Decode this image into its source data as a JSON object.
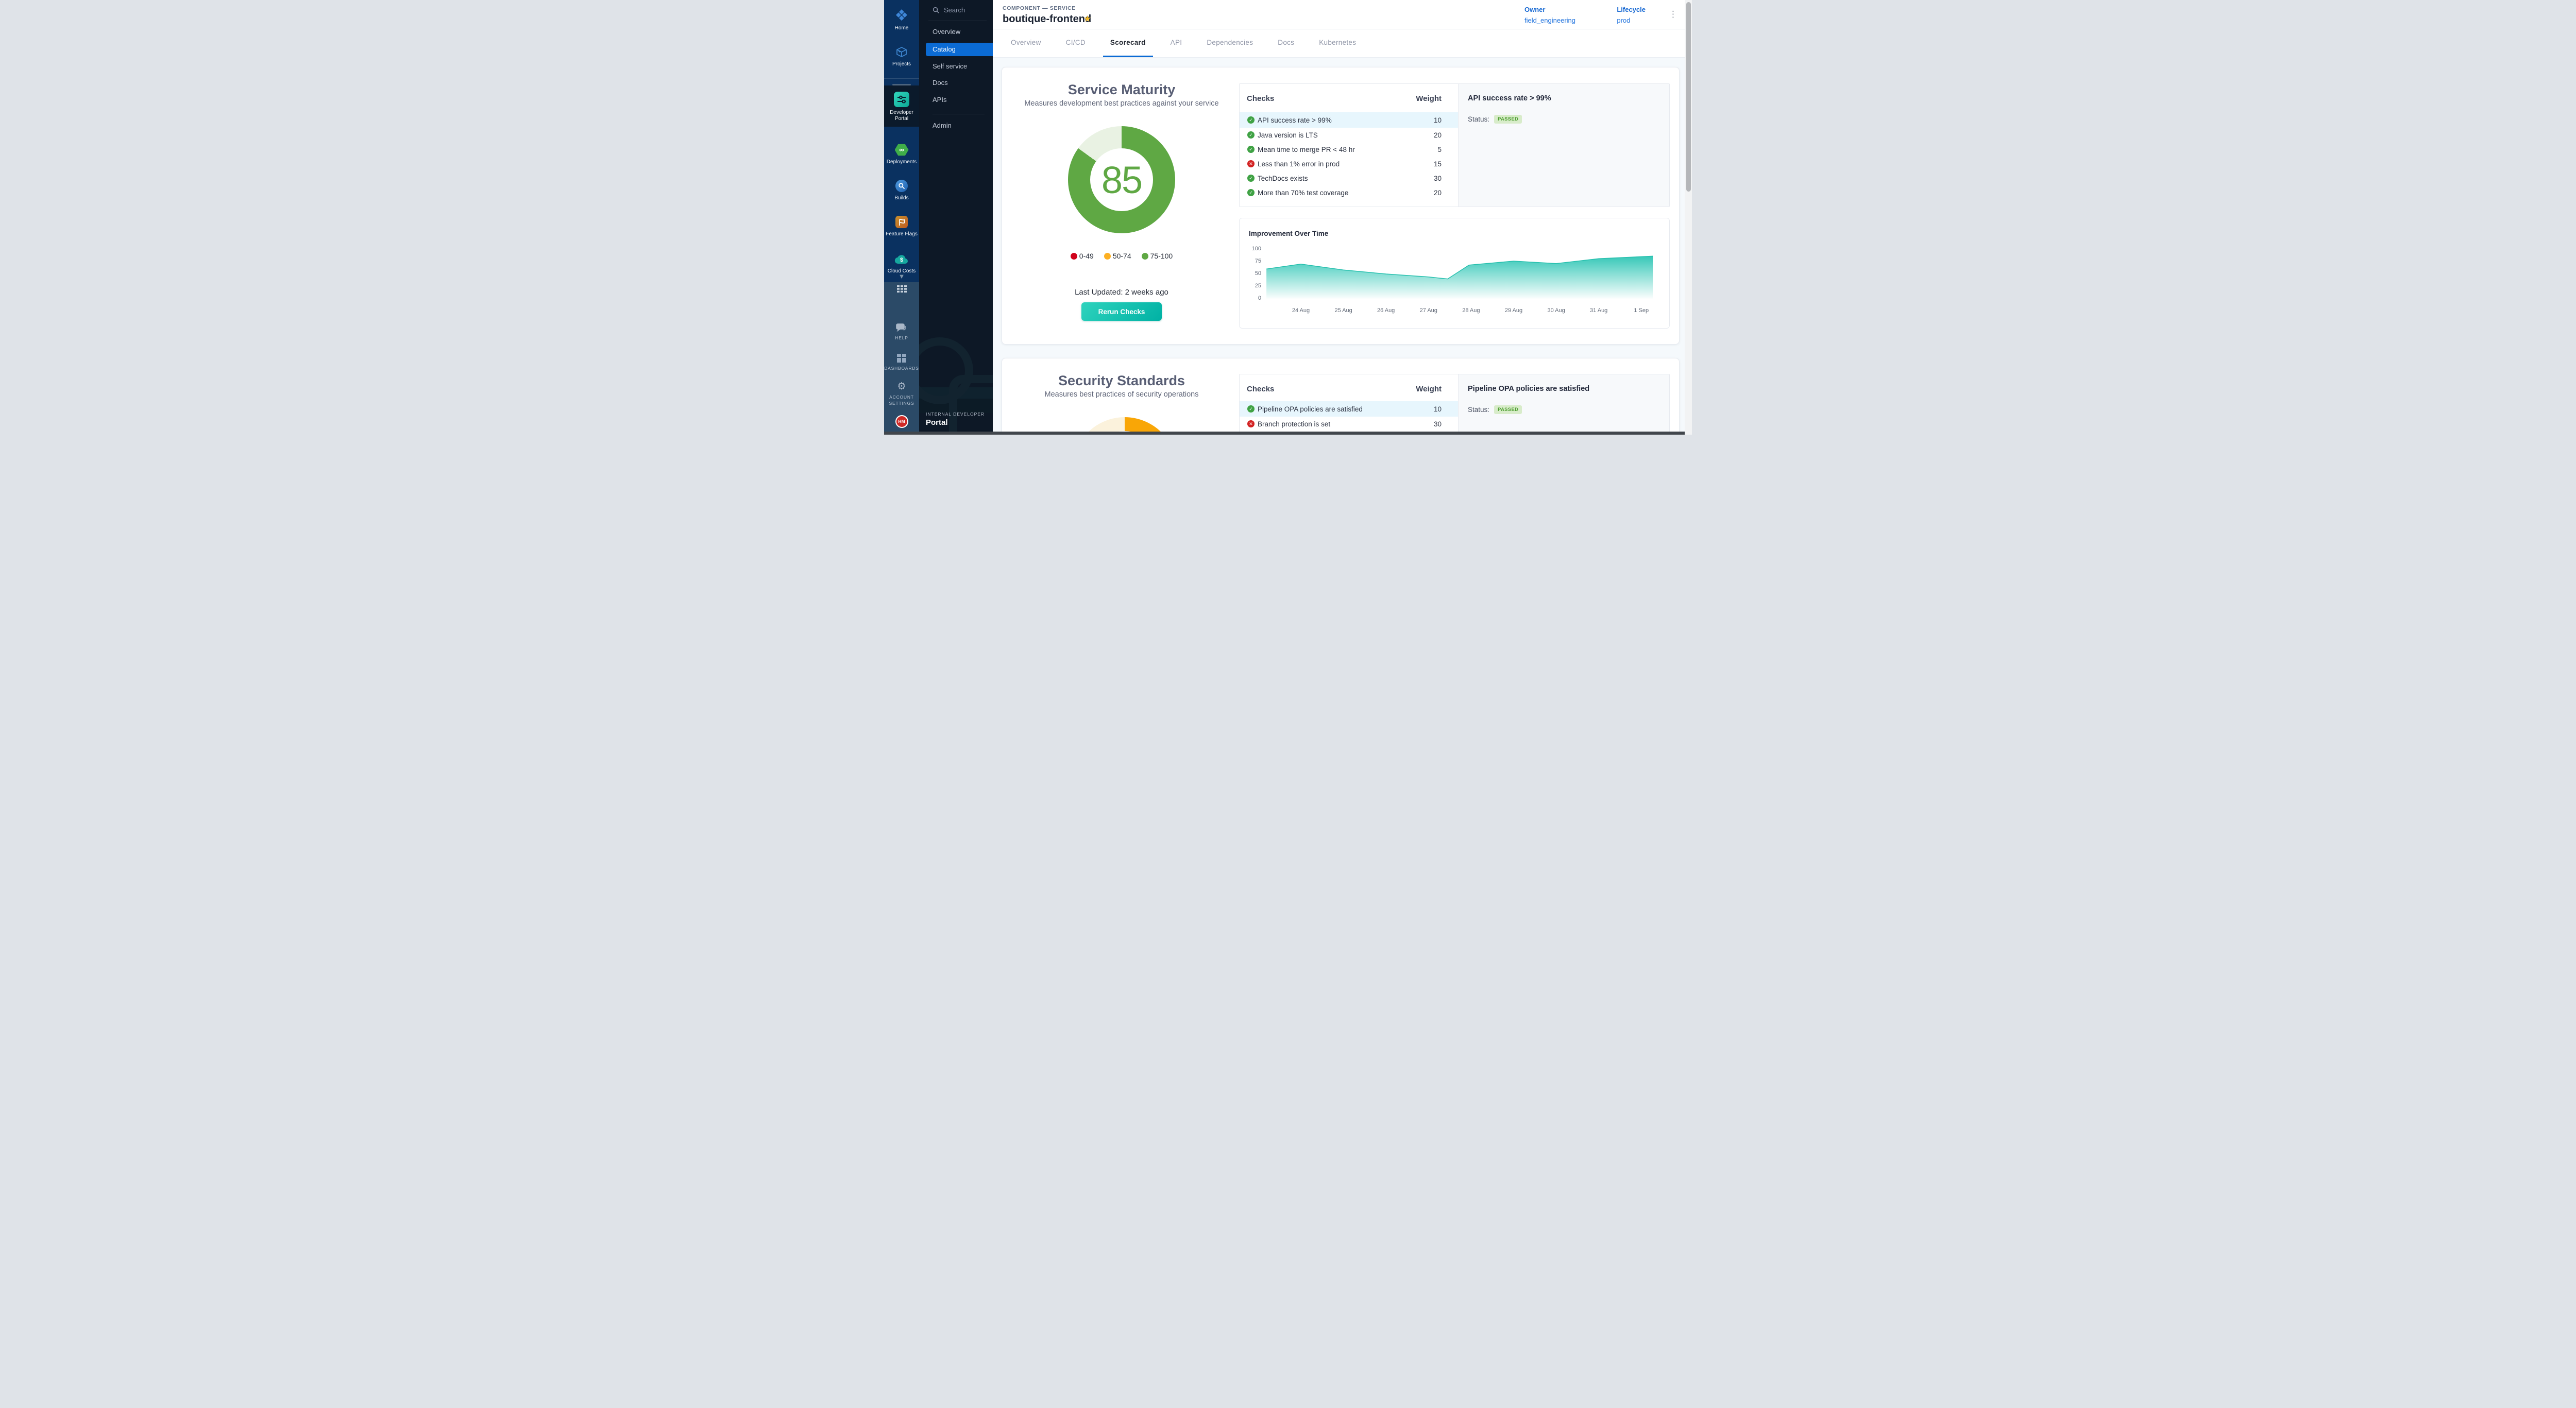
{
  "rail": {
    "modules": [
      {
        "name": "home",
        "label": "Home"
      },
      {
        "name": "projects",
        "label": "Projects"
      },
      {
        "name": "developer-portal",
        "label_line1": "Developer",
        "label_line2": "Portal",
        "active": true
      },
      {
        "name": "deployments",
        "label": "Deployments"
      },
      {
        "name": "builds",
        "label": "Builds"
      },
      {
        "name": "feature-flags",
        "label": "Feature Flags"
      },
      {
        "name": "cloud-costs",
        "label": "Cloud Costs"
      }
    ],
    "utilities": [
      {
        "name": "help",
        "label": "HELP"
      },
      {
        "name": "dashboards",
        "label": "DASHBOARDS"
      },
      {
        "name": "account-settings",
        "label_line1": "ACCOUNT",
        "label_line2": "SETTINGS"
      }
    ],
    "avatar_initials": "HM"
  },
  "sidenav": {
    "search_label": "Search",
    "items": [
      {
        "label": "Overview",
        "active": false
      },
      {
        "label": "Catalog",
        "active": true
      },
      {
        "label": "Self service",
        "active": false
      },
      {
        "label": "Docs",
        "active": false
      },
      {
        "label": "APIs",
        "active": false
      },
      {
        "label": "Admin",
        "active": false
      }
    ],
    "footer_kicker": "INTERNAL DEVELOPER",
    "footer_title": "Portal"
  },
  "header": {
    "kicker": "COMPONENT — SERVICE",
    "title": "boutique-frontend",
    "star_icon": "star-filled",
    "meta": [
      {
        "label": "Owner",
        "value": "field_engineering"
      },
      {
        "label": "Lifecycle",
        "value": "prod"
      }
    ]
  },
  "tabs": [
    {
      "label": "Overview",
      "active": false
    },
    {
      "label": "CI/CD",
      "active": false
    },
    {
      "label": "Scorecard",
      "active": true
    },
    {
      "label": "API",
      "active": false
    },
    {
      "label": "Dependencies",
      "active": false
    },
    {
      "label": "Docs",
      "active": false
    },
    {
      "label": "Kubernetes",
      "active": false
    }
  ],
  "scorecards": [
    {
      "title": "Service Maturity",
      "subtitle": "Measures development best practices against your service",
      "score": "85",
      "last_updated": "Last Updated: 2 weeks ago",
      "rerun_label": "Rerun Checks",
      "checks_header": {
        "name": "Checks",
        "weight": "Weight"
      },
      "rows": [
        {
          "name": "API success rate > 99%",
          "weight": "10",
          "status": "pass",
          "selected": true
        },
        {
          "name": "Java version is LTS",
          "weight": "20",
          "status": "pass",
          "selected": false
        },
        {
          "name": "Mean time to merge PR < 48 hr",
          "weight": "5",
          "status": "pass",
          "selected": false
        },
        {
          "name": "Less than 1% error in prod",
          "weight": "15",
          "status": "fail",
          "selected": false
        },
        {
          "name": "TechDocs exists",
          "weight": "30",
          "status": "pass",
          "selected": false
        },
        {
          "name": "More than 70% test coverage",
          "weight": "20",
          "status": "pass",
          "selected": false
        }
      ],
      "detail": {
        "title": "API success rate > 99%",
        "status_label": "Status:",
        "status_value": "PASSED"
      }
    },
    {
      "title": "Security Standards",
      "subtitle": "Measures best practices of security operations",
      "checks_header": {
        "name": "Checks",
        "weight": "Weight"
      },
      "rows": [
        {
          "name": "Pipeline OPA policies are satisfied",
          "weight": "10",
          "status": "pass",
          "selected": true
        },
        {
          "name": "Branch protection is set",
          "weight": "30",
          "status": "fail",
          "selected": false
        },
        {
          "name": "",
          "weight": "",
          "status": "pass",
          "selected": false
        }
      ],
      "detail": {
        "title": "Pipeline OPA policies are satisfied",
        "status_label": "Status:",
        "status_value": "PASSED"
      }
    }
  ],
  "chart_data": [
    {
      "id": "maturity-donut",
      "type": "donut",
      "title": "Service Maturity score",
      "value": 85,
      "max": 100,
      "value_color": "#5fa844",
      "track_color": "#e9f2e3",
      "legend": [
        {
          "label": "0-49",
          "color": "#d0021b"
        },
        {
          "label": "50-74",
          "color": "#fdb022"
        },
        {
          "label": "75-100",
          "color": "#5fa844"
        }
      ]
    },
    {
      "id": "improvement-area",
      "type": "area",
      "title": "Improvement Over Time",
      "x_labels": [
        "24 Aug",
        "25 Aug",
        "26 Aug",
        "27 Aug",
        "28 Aug",
        "29 Aug",
        "30 Aug",
        "31 Aug",
        "1 Sep"
      ],
      "series": [
        {
          "name": "score",
          "points": [
            [
              -0.81,
              60
            ],
            [
              0,
              70
            ],
            [
              1,
              58
            ],
            [
              2,
              50
            ],
            [
              3,
              44
            ],
            [
              3.45,
              40
            ],
            [
              3.95,
              68
            ],
            [
              4.15,
              69.5
            ],
            [
              5,
              76
            ],
            [
              6,
              71
            ],
            [
              7,
              81
            ],
            [
              8,
              85
            ],
            [
              8.27,
              86
            ]
          ]
        }
      ],
      "ylim": [
        0,
        100
      ],
      "yticks": [
        100,
        75,
        50,
        25,
        0
      ],
      "color": "#2cc5b4",
      "legend_position": "none",
      "grid": false
    },
    {
      "id": "security-gauge",
      "type": "donut",
      "title": "Security Standards score",
      "value": 50,
      "max": 100,
      "value_color": "#f9a606",
      "track_color": "#fbf2dc"
    }
  ]
}
